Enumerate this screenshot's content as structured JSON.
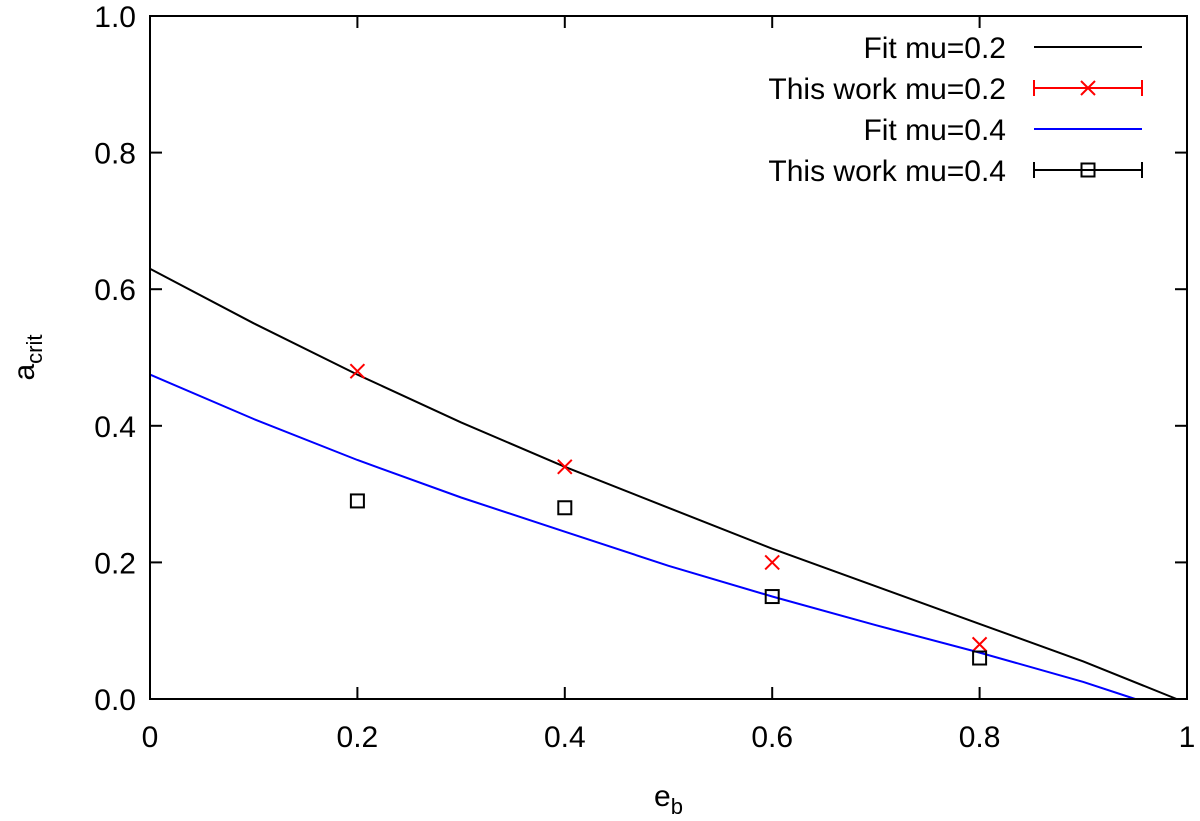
{
  "chart_data": {
    "type": "line",
    "xlabel": {
      "main": "e",
      "sub": "b"
    },
    "ylabel": {
      "main": "a",
      "sub": "crit"
    },
    "xlim": [
      0,
      1
    ],
    "ylim": [
      0,
      1
    ],
    "xticks": [
      0,
      0.2,
      0.4,
      0.6,
      0.8,
      1
    ],
    "xtick_labels": [
      "0",
      "0.2",
      "0.4",
      "0.6",
      "0.8",
      "1"
    ],
    "yticks": [
      0,
      0.2,
      0.4,
      0.6,
      0.8,
      1.0
    ],
    "ytick_labels": [
      "0.0",
      "0.2",
      "0.4",
      "0.6",
      "0.8",
      "1.0"
    ],
    "grid": false,
    "legend_position": "top-right",
    "series": [
      {
        "name": "Fit mu=0.2",
        "kind": "line",
        "color": "#000000",
        "x": [
          0,
          0.1,
          0.2,
          0.3,
          0.4,
          0.5,
          0.6,
          0.7,
          0.8,
          0.9,
          0.99
        ],
        "y": [
          0.63,
          0.55,
          0.475,
          0.405,
          0.34,
          0.28,
          0.22,
          0.165,
          0.11,
          0.055,
          0.0
        ]
      },
      {
        "name": "This work mu=0.2",
        "kind": "points",
        "marker": "x",
        "color": "#ff0000",
        "x": [
          0.2,
          0.4,
          0.6,
          0.8
        ],
        "y": [
          0.48,
          0.34,
          0.2,
          0.08
        ]
      },
      {
        "name": "Fit mu=0.4",
        "kind": "line",
        "color": "#0000ff",
        "x": [
          0,
          0.1,
          0.2,
          0.3,
          0.4,
          0.5,
          0.6,
          0.7,
          0.8,
          0.9,
          0.95
        ],
        "y": [
          0.475,
          0.41,
          0.35,
          0.295,
          0.245,
          0.195,
          0.15,
          0.108,
          0.068,
          0.025,
          0.0
        ]
      },
      {
        "name": "This work mu=0.4",
        "kind": "points",
        "marker": "square",
        "color": "#000000",
        "x": [
          0.2,
          0.4,
          0.6,
          0.8
        ],
        "y": [
          0.29,
          0.28,
          0.15,
          0.06
        ]
      }
    ]
  }
}
